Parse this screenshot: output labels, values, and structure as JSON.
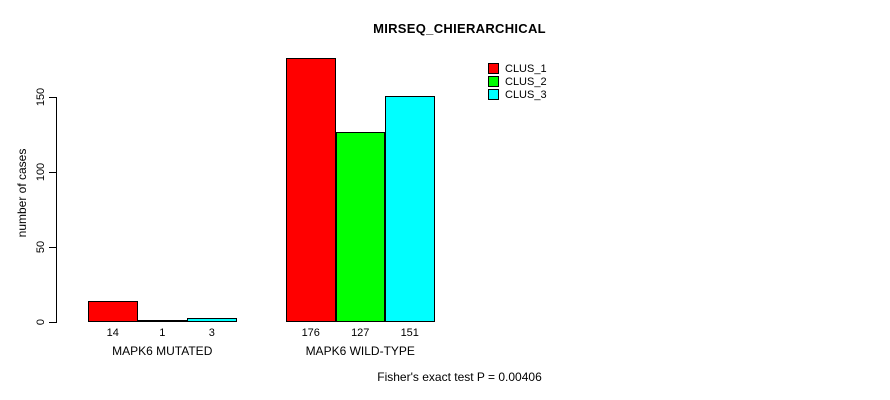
{
  "chart_data": {
    "type": "bar",
    "title": "MIRSEQ_CHIERARCHICAL",
    "ylabel": "number of cases",
    "xlabel": "",
    "categories": [
      "MAPK6 MUTATED",
      "MAPK6 WILD-TYPE"
    ],
    "series": [
      {
        "name": "CLUS_1",
        "color": "#ff0000",
        "values": [
          14,
          176
        ]
      },
      {
        "name": "CLUS_2",
        "color": "#00ff00",
        "values": [
          1,
          127
        ]
      },
      {
        "name": "CLUS_3",
        "color": "#00ffff",
        "values": [
          3,
          151
        ]
      }
    ],
    "bar_value_labels": [
      [
        "14",
        "1",
        "3"
      ],
      [
        "176",
        "127",
        "151"
      ]
    ],
    "yticks": [
      "0",
      "50",
      "100",
      "150"
    ],
    "ylim": [
      0,
      176
    ],
    "grid": false,
    "legend_position": "right-of-plot-top",
    "annotation": "Fisher's exact test P = 0.00406"
  }
}
